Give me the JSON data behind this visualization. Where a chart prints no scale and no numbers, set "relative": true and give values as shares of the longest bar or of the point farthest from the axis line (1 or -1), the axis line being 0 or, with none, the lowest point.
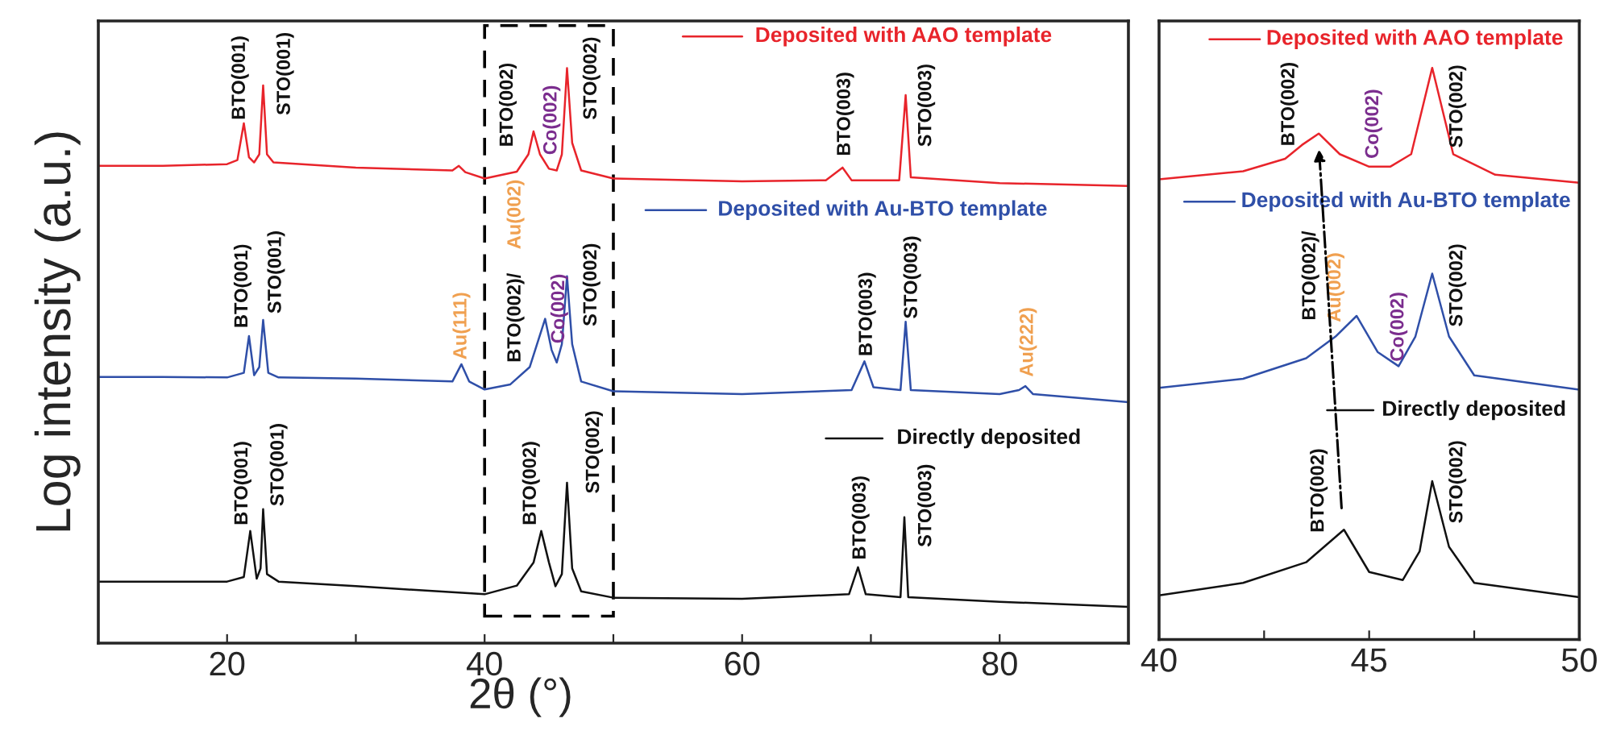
{
  "chart_data": [
    {
      "type": "line",
      "relative": true,
      "ylabel": "Log intensity (a.u.)",
      "xlabel": "2θ (°)",
      "xlim": [
        10,
        90
      ],
      "xticks": [
        20,
        {
          "value": 30,
          "label": null
        },
        40,
        {
          "value": 50,
          "label": null
        },
        60,
        {
          "value": 70,
          "label": null
        },
        80
      ],
      "tick_labels": "x",
      "grid": false,
      "legend": "top right",
      "series": [
        {
          "name": "Deposited with AAO template",
          "color": "#e8242b",
          "x": [
            10,
            15,
            20,
            20.8,
            21.3,
            21.7,
            22.1,
            22.5,
            22.8,
            23.1,
            23.6,
            30,
            37.5,
            38,
            38.5,
            40,
            42.5,
            43.4,
            43.8,
            44.3,
            45,
            45.6,
            46.0,
            46.4,
            46.8,
            47.5,
            50,
            60,
            66.5,
            67.8,
            68.5,
            72.2,
            72.7,
            73.1,
            80,
            90
          ],
          "values": [
            0.83,
            0.83,
            0.833,
            0.84,
            0.904,
            0.845,
            0.836,
            0.85,
            0.97,
            0.85,
            0.836,
            0.827,
            0.822,
            0.83,
            0.819,
            0.808,
            0.82,
            0.85,
            0.89,
            0.85,
            0.825,
            0.822,
            0.85,
            1.0,
            0.87,
            0.822,
            0.808,
            0.803,
            0.805,
            0.827,
            0.805,
            0.805,
            0.953,
            0.81,
            0.8,
            0.795
          ]
        },
        {
          "name": "Deposited with Au-BTO template",
          "color": "#2f4fa8",
          "x": [
            10,
            15,
            20,
            21.3,
            21.7,
            22.1,
            22.5,
            22.8,
            23.2,
            24,
            30,
            37.5,
            38.2,
            38.8,
            40,
            42,
            43.5,
            44.7,
            45.2,
            45.6,
            46.0,
            46.4,
            46.8,
            47.5,
            50,
            60,
            68.5,
            69.5,
            70.2,
            72.3,
            72.7,
            73.1,
            80,
            81.5,
            82,
            82.6,
            90
          ],
          "values": [
            0.463,
            0.463,
            0.462,
            0.47,
            0.534,
            0.466,
            0.48,
            0.562,
            0.47,
            0.462,
            0.46,
            0.455,
            0.485,
            0.455,
            0.441,
            0.45,
            0.48,
            0.564,
            0.51,
            0.488,
            0.52,
            0.638,
            0.52,
            0.455,
            0.438,
            0.433,
            0.44,
            0.49,
            0.445,
            0.44,
            0.559,
            0.44,
            0.433,
            0.44,
            0.447,
            0.433,
            0.419
          ]
        },
        {
          "name": "Directly deposited",
          "color": "#111111",
          "x": [
            10,
            15,
            20,
            21.3,
            21.8,
            22.3,
            22.6,
            22.8,
            23.1,
            24,
            30,
            40,
            42.5,
            43.8,
            44.4,
            45,
            45.5,
            46.0,
            46.4,
            46.8,
            47.5,
            50,
            60,
            68.3,
            69,
            69.6,
            72.3,
            72.6,
            72.9,
            80,
            90
          ],
          "values": [
            0.107,
            0.107,
            0.107,
            0.115,
            0.195,
            0.112,
            0.13,
            0.233,
            0.12,
            0.107,
            0.099,
            0.085,
            0.1,
            0.14,
            0.195,
            0.14,
            0.099,
            0.12,
            0.279,
            0.13,
            0.09,
            0.079,
            0.077,
            0.085,
            0.132,
            0.085,
            0.08,
            0.219,
            0.08,
            0.072,
            0.063
          ]
        }
      ],
      "annotations": [
        "BTO(001)",
        "STO(001)",
        "BTO(002)",
        "Co(002)",
        "STO(002)",
        "BTO(003)",
        "STO(003)",
        "BTO(001)",
        "STO(001)",
        "Au(111)",
        "BTO(002)/",
        "Au(002)",
        "Co(002)",
        "STO(002)",
        "BTO(003)",
        "STO(003)",
        "Au(222)",
        "BTO(001)",
        "STO(001)",
        "BTO(002)",
        "STO(002)",
        "BTO(003)",
        "STO(003)"
      ]
    },
    {
      "type": "line",
      "relative": true,
      "xlim": [
        40,
        50
      ],
      "xticks": [
        40,
        {
          "value": 42.5,
          "label": null
        },
        45,
        {
          "value": 47.5,
          "label": null
        },
        50
      ],
      "tick_labels": "x",
      "grid": false,
      "legend": "top right",
      "series": [
        {
          "name": "Deposited with AAO template",
          "color": "#e8242b",
          "x": [
            40,
            42,
            43,
            43.4,
            43.8,
            44.3,
            45,
            45.5,
            46.0,
            46.5,
            47,
            48,
            50
          ],
          "values": [
            0.805,
            0.819,
            0.841,
            0.865,
            0.885,
            0.849,
            0.827,
            0.827,
            0.849,
            1.0,
            0.849,
            0.813,
            0.799
          ]
        },
        {
          "name": "Deposited with Au-BTO template",
          "color": "#2f4fa8",
          "x": [
            40,
            42,
            43.5,
            44.2,
            44.7,
            45.2,
            45.7,
            46.1,
            46.5,
            46.9,
            47.5,
            50
          ],
          "values": [
            0.44,
            0.456,
            0.492,
            0.53,
            0.566,
            0.503,
            0.478,
            0.53,
            0.64,
            0.53,
            0.462,
            0.437
          ]
        },
        {
          "name": "Directly deposited",
          "color": "#111111",
          "x": [
            40,
            42,
            43.5,
            44.4,
            45,
            45.8,
            46.2,
            46.5,
            46.9,
            47.5,
            50
          ],
          "values": [
            0.077,
            0.099,
            0.135,
            0.192,
            0.118,
            0.104,
            0.154,
            0.277,
            0.162,
            0.099,
            0.074
          ]
        }
      ],
      "annotations": [
        "BTO(002)",
        "Co(002)",
        "STO(002)",
        "BTO(002)/",
        "Au(002)",
        "Co(002)",
        "STO(002)",
        "BTO(002)",
        "STO(002)"
      ]
    }
  ]
}
